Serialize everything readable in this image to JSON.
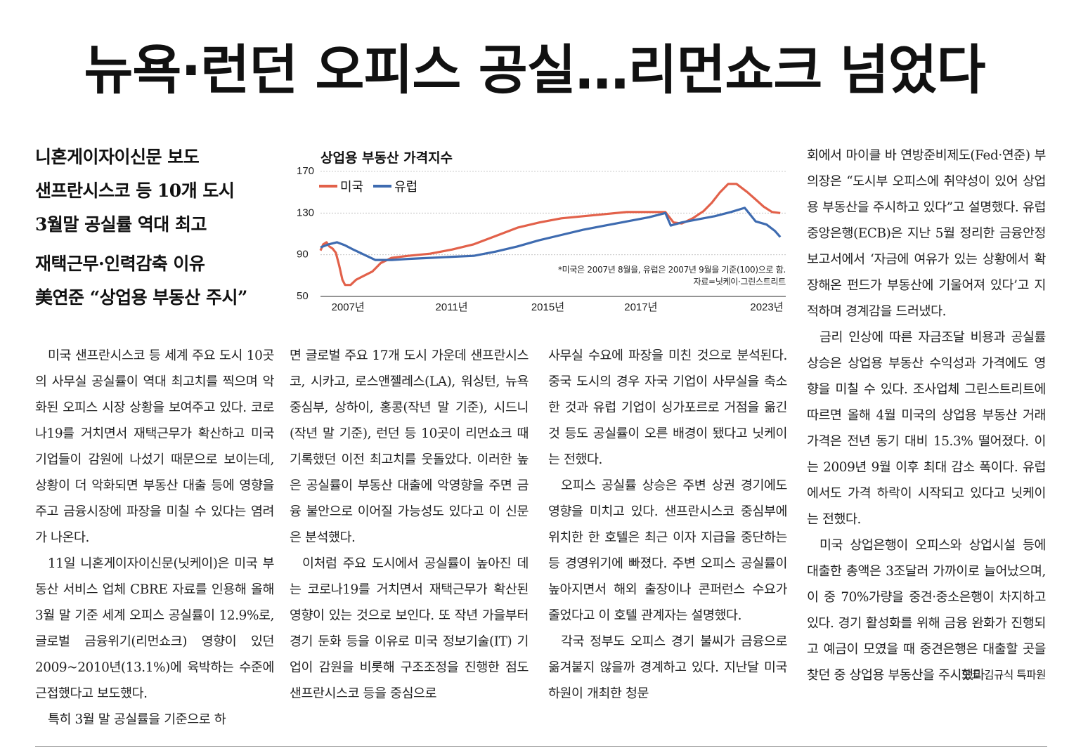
{
  "headline": "뉴욕·런던 오피스 공실…리먼쇼크 넘었다",
  "subheads": [
    "니혼게이자이신문 보도",
    "샌프란시스코 등 10개 도시",
    "3월말 공실률 역대 최고",
    "재택근무·인력감축 이유",
    "美연준 “상업용 부동산 주시”"
  ],
  "chart_data": {
    "type": "line",
    "title": "상업용 부동산 가격지수",
    "x_ticks": [
      "2007년",
      "2011년",
      "2015년",
      "2017년",
      "2023년"
    ],
    "ylim": [
      50,
      170
    ],
    "y_ticks": [
      50,
      90,
      130,
      170
    ],
    "grid": true,
    "legend": "top-left",
    "note": "*미국은 2007년 8월을, 유럽은 2007년 9월을 기준(100)으로 함.",
    "source": "자료=닛케이·그린스트리트",
    "series": [
      {
        "name": "미국",
        "color": "#e2614a",
        "points": [
          [
            0,
            94
          ],
          [
            0.05,
            100
          ],
          [
            0.11,
            102
          ],
          [
            0.16,
            98
          ],
          [
            0.22,
            96
          ],
          [
            0.28,
            92
          ],
          [
            0.34,
            80
          ],
          [
            0.4,
            66
          ],
          [
            0.45,
            61
          ],
          [
            0.55,
            61
          ],
          [
            0.65,
            66
          ],
          [
            0.8,
            70
          ],
          [
            0.95,
            74
          ],
          [
            1.1,
            82
          ],
          [
            1.3,
            87
          ],
          [
            1.6,
            89
          ],
          [
            2.0,
            91
          ],
          [
            2.4,
            95
          ],
          [
            2.8,
            100
          ],
          [
            3.2,
            108
          ],
          [
            3.6,
            116
          ],
          [
            4.0,
            121
          ],
          [
            4.4,
            125
          ],
          [
            4.8,
            127
          ],
          [
            5.2,
            129
          ],
          [
            5.6,
            131
          ],
          [
            6.0,
            131
          ],
          [
            6.3,
            131
          ],
          [
            6.45,
            121
          ],
          [
            6.6,
            120
          ],
          [
            6.8,
            125
          ],
          [
            7.0,
            132
          ],
          [
            7.15,
            140
          ],
          [
            7.3,
            150
          ],
          [
            7.45,
            158
          ],
          [
            7.6,
            158
          ],
          [
            7.8,
            150
          ],
          [
            7.95,
            143
          ],
          [
            8.1,
            136
          ],
          [
            8.25,
            131
          ],
          [
            8.4,
            130
          ]
        ]
      },
      {
        "name": "유럽",
        "color": "#3e6bb0",
        "points": [
          [
            0,
            97
          ],
          [
            0.15,
            100
          ],
          [
            0.3,
            102
          ],
          [
            0.45,
            99
          ],
          [
            0.6,
            95
          ],
          [
            0.8,
            90
          ],
          [
            1.0,
            85
          ],
          [
            1.3,
            85
          ],
          [
            1.6,
            86
          ],
          [
            2.0,
            87
          ],
          [
            2.4,
            88
          ],
          [
            2.8,
            89
          ],
          [
            3.2,
            93
          ],
          [
            3.6,
            98
          ],
          [
            4.0,
            104
          ],
          [
            4.4,
            109
          ],
          [
            4.8,
            114
          ],
          [
            5.2,
            118
          ],
          [
            5.6,
            122
          ],
          [
            6.0,
            126
          ],
          [
            6.3,
            130
          ],
          [
            6.4,
            118
          ],
          [
            6.6,
            121
          ],
          [
            6.9,
            124
          ],
          [
            7.2,
            127
          ],
          [
            7.5,
            131
          ],
          [
            7.75,
            135
          ],
          [
            7.95,
            122
          ],
          [
            8.15,
            119
          ],
          [
            8.3,
            113
          ],
          [
            8.4,
            107
          ]
        ]
      }
    ]
  },
  "columns": [
    [
      "미국 샌프란시스코 등 세계 주요 도시 10곳의 사무실 공실률이 역대 최고치를 찍으며 악화된 오피스 시장 상황을 보여주고 있다. 코로나19를 거치면서 재택근무가 확산하고 미국 기업들이 감원에 나섰기 때문으로 보이는데, 상황이 더 악화되면 부동산 대출 등에 영향을 주고 금융시장에 파장을 미칠 수 있다는 염려가 나온다.",
      "11일 니혼게이자이신문(닛케이)은 미국 부동산 서비스 업체 CBRE 자료를 인용해 올해 3월 말 기준 세계 오피스 공실률이 12.9%로, 글로벌 금융위기(리먼쇼크) 영향이 있던 2009~2010년(13.1%)에 육박하는 수준에 근접했다고 보도했다.",
      "특히 3월 말 공실률을 기준으로 하"
    ],
    [
      "면 글로벌 주요 17개 도시 가운데 샌프란시스코, 시카고, 로스앤젤레스(LA), 워싱턴, 뉴욕 중심부, 상하이, 홍콩(작년 말 기준), 시드니(작년 말 기준), 런던 등 10곳이 리먼쇼크 때 기록했던 이전 최고치를 웃돌았다. 이러한 높은 공실률이 부동산 대출에 악영향을 주면 금융 불안으로 이어질 가능성도 있다고 이 신문은 분석했다.",
      "이처럼 주요 도시에서 공실률이 높아진 데는 코로나19를 거치면서 재택근무가 확산된 영향이 있는 것으로 보인다. 또 작년 가을부터 경기 둔화 등을 이유로 미국 정보기술(IT) 기업이 감원을 비롯해 구조조정을 진행한 점도 샌프란시스코 등을 중심으로"
    ],
    [
      "사무실 수요에 파장을 미친 것으로 분석된다. 중국 도시의 경우 자국 기업이 사무실을 축소한 것과 유럽 기업이 싱가포르로 거점을 옮긴 것 등도 공실률이 오른 배경이 됐다고 닛케이는 전했다.",
      "오피스 공실률 상승은 주변 상권 경기에도 영향을 미치고 있다. 샌프란시스코 중심부에 위치한 한 호텔은 최근 이자 지급을 중단하는 등 경영위기에 빠졌다. 주변 오피스 공실률이 높아지면서 해외 출장이나 콘퍼런스 수요가 줄었다고 이 호텔 관계자는 설명했다.",
      "각국 정부도 오피스 경기 불씨가 금융으로 옮겨붙지 않을까 경계하고 있다. 지난달 미국 하원이 개최한 청문"
    ],
    [
      "회에서 마이클 바 연방준비제도(Fed·연준) 부의장은 “도시부 오피스에 취약성이 있어 상업용 부동산을 주시하고 있다”고 설명했다. 유럽중앙은행(ECB)은 지난 5월 정리한 금융안정보고서에서 ‘자금에 여유가 있는 상황에서 확장해온 펀드가 부동산에 기울어져 있다’고 지적하며 경계감을 드러냈다.",
      "금리 인상에 따른 자금조달 비용과 공실률 상승은 상업용 부동산 수익성과 가격에도 영향을 미칠 수 있다. 조사업체 그린스트리트에 따르면 올해 4월 미국의 상업용 부동산 거래 가격은 전년 동기 대비 15.3% 떨어졌다. 이는 2009년 9월 이후 최대 감소 폭이다. 유럽에서도 가격 하락이 시작되고 있다고 닛케이는 전했다.",
      "미국 상업은행이 오피스와 상업시설 등에 대출한 총액은 3조달러 가까이로 늘어났으며, 이 중 70%가량을 중견·중소은행이 차지하고 있다. 경기 활성화를 위해 금융 완화가 진행되고 예금이 모였을 때 중견은행은 대출할 곳을 찾던 중 상업용 부동산을 주시했다."
    ]
  ],
  "byline": "도쿄 김규식 특파원"
}
